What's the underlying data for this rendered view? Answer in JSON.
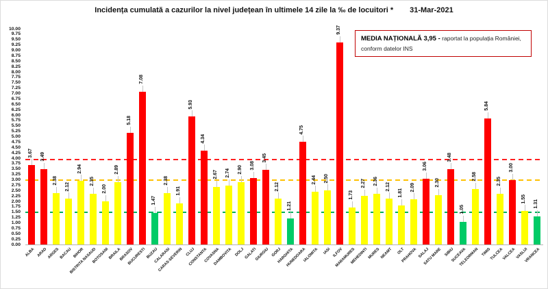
{
  "chart_data": {
    "type": "bar",
    "title": "Incidența cumulată a cazurilor la nivel județean în ultimele 14 zile la ‰ de locuitori *",
    "date": "31-Mar-2021",
    "xlabel": "",
    "ylabel": "",
    "ylim": [
      0,
      10
    ],
    "ytick_step": 0.25,
    "grid": false,
    "legend_box": {
      "bold_text": "MEDIA NAȚIONALĂ 3,95 -",
      "text_line1": "raportat la populația României,",
      "text_line2": "conform datelor INS",
      "border_color": "#C00000"
    },
    "thresholds": [
      {
        "name": "national-average-line",
        "value": 3.95,
        "color": "#FF1F1F"
      },
      {
        "name": "yellow-zone-line",
        "value": 3.0,
        "color": "#FFC000"
      },
      {
        "name": "green-zone-line",
        "value": 1.5,
        "color": "#00B05A"
      }
    ],
    "band_colors": {
      "red": "#FF0000",
      "yellow": "#FFFF00",
      "green": "#00CB66"
    },
    "bars": [
      {
        "label": "ALBA",
        "value": 3.67,
        "band": "red"
      },
      {
        "label": "ARAD",
        "value": 3.49,
        "band": "red"
      },
      {
        "label": "ARGES",
        "value": 2.38,
        "band": "yellow"
      },
      {
        "label": "BACAU",
        "value": 2.12,
        "band": "yellow"
      },
      {
        "label": "BIHOR",
        "value": 2.94,
        "band": "yellow"
      },
      {
        "label": "BISTRITA NASAUD",
        "value": 2.35,
        "band": "yellow"
      },
      {
        "label": "BOTOSANI",
        "value": 2.0,
        "band": "yellow"
      },
      {
        "label": "BRAILA",
        "value": 2.89,
        "band": "yellow"
      },
      {
        "label": "BRASOV",
        "value": 5.18,
        "band": "red"
      },
      {
        "label": "BUCURESTI",
        "value": 7.08,
        "band": "red"
      },
      {
        "label": "BUZAU",
        "value": 1.47,
        "band": "green"
      },
      {
        "label": "CALARASI",
        "value": 2.38,
        "band": "yellow"
      },
      {
        "label": "CARAS-SEVERIN",
        "value": 1.91,
        "band": "yellow"
      },
      {
        "label": "CLUJ",
        "value": 5.93,
        "band": "red"
      },
      {
        "label": "CONSTANTA",
        "value": 4.34,
        "band": "red"
      },
      {
        "label": "COVASNA",
        "value": 2.67,
        "band": "yellow"
      },
      {
        "label": "DAMBOVITA",
        "value": 2.74,
        "band": "yellow"
      },
      {
        "label": "DOLJ",
        "value": 2.9,
        "band": "yellow"
      },
      {
        "label": "GALATI",
        "value": 3.08,
        "band": "red"
      },
      {
        "label": "GIURGIU",
        "value": 3.45,
        "band": "red"
      },
      {
        "label": "GORJ",
        "value": 2.12,
        "band": "yellow"
      },
      {
        "label": "HARGHITA",
        "value": 1.21,
        "band": "green"
      },
      {
        "label": "HUNEDOARA",
        "value": 4.75,
        "band": "red"
      },
      {
        "label": "IALOMITA",
        "value": 2.44,
        "band": "yellow"
      },
      {
        "label": "IASI",
        "value": 2.5,
        "band": "yellow"
      },
      {
        "label": "ILFOV",
        "value": 9.37,
        "band": "red"
      },
      {
        "label": "MARAMURES",
        "value": 1.73,
        "band": "yellow"
      },
      {
        "label": "MEHEDINTI",
        "value": 2.27,
        "band": "yellow"
      },
      {
        "label": "MURES",
        "value": 2.36,
        "band": "yellow"
      },
      {
        "label": "NEAMT",
        "value": 2.12,
        "band": "yellow"
      },
      {
        "label": "OLT",
        "value": 1.81,
        "band": "yellow"
      },
      {
        "label": "PRAHOVA",
        "value": 2.09,
        "band": "yellow"
      },
      {
        "label": "SALAJ",
        "value": 3.06,
        "band": "red"
      },
      {
        "label": "SATU MARE",
        "value": 2.3,
        "band": "yellow"
      },
      {
        "label": "SIBIU",
        "value": 3.48,
        "band": "red"
      },
      {
        "label": "SUCEAVA",
        "value": 1.05,
        "band": "green"
      },
      {
        "label": "TELEORMAN",
        "value": 2.58,
        "band": "yellow"
      },
      {
        "label": "TIMIS",
        "value": 5.84,
        "band": "red"
      },
      {
        "label": "TULCEA",
        "value": 2.35,
        "band": "yellow"
      },
      {
        "label": "VALCEA",
        "value": 3.0,
        "band": "red"
      },
      {
        "label": "VASLUI",
        "value": 1.55,
        "band": "yellow"
      },
      {
        "label": "VRANCEA",
        "value": 1.31,
        "band": "green"
      }
    ]
  }
}
